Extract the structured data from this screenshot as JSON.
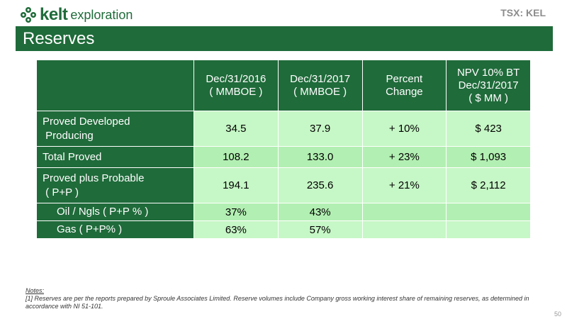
{
  "header": {
    "brand": "kelt",
    "brand_sub": "exploration",
    "ticker": "TSX: KEL",
    "title": "Reserves"
  },
  "table": {
    "columns": [
      "",
      "Dec/31/2016\n( MMBOE )",
      "Dec/31/2017\n( MMBOE )",
      "Percent\nChange",
      "NPV 10% BT\nDec/31/2017\n( $ MM )"
    ],
    "rows": [
      {
        "label": "Proved Developed\n Producing",
        "cells": [
          "34.5",
          "37.9",
          "+ 10%",
          "$ 423"
        ]
      },
      {
        "label": "Total  Proved",
        "cells": [
          "108.2",
          "133.0",
          "+ 23%",
          "$ 1,093"
        ]
      },
      {
        "label": "Proved plus Probable\n ( P+P )",
        "cells": [
          "194.1",
          "235.6",
          "+ 21%",
          "$ 2,112"
        ]
      },
      {
        "label": "Oil / Ngls ( P+P % )",
        "cells": [
          "37%",
          "43%",
          "",
          ""
        ]
      },
      {
        "label": "Gas ( P+P% )",
        "cells": [
          "63%",
          "57%",
          "",
          ""
        ]
      }
    ]
  },
  "notes": {
    "heading": "Notes:",
    "items": [
      "[1]  Reserves are per the reports prepared by Sproule Associates Limited. Reserve volumes include Company gross working interest share of remaining reserves, as determined in accordance with NI 51-101."
    ]
  },
  "page_number": "50",
  "colors": {
    "brand_green": "#1f6b3a",
    "cell_light": "#c6f7c6",
    "cell_alt": "#b2efb2"
  }
}
